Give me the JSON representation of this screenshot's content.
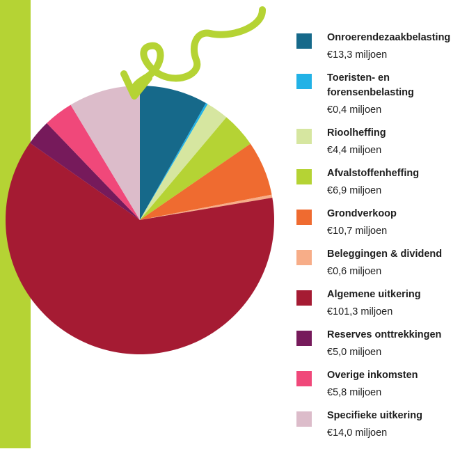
{
  "chart_data": {
    "type": "pie",
    "start": "top",
    "direction": "clockwise",
    "unit_suffix": " miljoen",
    "slices": [
      {
        "label": "Onroerendezaakbelasting",
        "value_text": "€13,3 miljoen",
        "value": 13.3,
        "color": "#16698a"
      },
      {
        "label": "Toeristen- en forensenbelasting",
        "value_text": "€0,4 miljoen",
        "value": 0.4,
        "color": "#22b2e6"
      },
      {
        "label": "Rioolheffing",
        "value_text": "€4,4 miljoen",
        "value": 4.4,
        "color": "#d6e6a0"
      },
      {
        "label": "Afvalstoffenheffing",
        "value_text": "€6,9 miljoen",
        "value": 6.9,
        "color": "#b5d334"
      },
      {
        "label": "Grondverkoop",
        "value_text": "€10,7 miljoen",
        "value": 10.7,
        "color": "#ef6b30"
      },
      {
        "label": "Beleggingen & dividend",
        "value_text": "€0,6 miljoen",
        "value": 0.6,
        "color": "#f7ad88"
      },
      {
        "label": "Algemene uitkering",
        "value_text": "€101,3 miljoen",
        "value": 101.3,
        "color": "#a51b33"
      },
      {
        "label": "Reserves onttrekkingen",
        "value_text": "€5,0 miljoen",
        "value": 5.0,
        "color": "#761a5b"
      },
      {
        "label": "Overige inkomsten",
        "value_text": "€5,8 miljoen",
        "value": 5.8,
        "color": "#f0487a"
      },
      {
        "label": "Specifieke uitkering",
        "value_text": "€14,0 miljoen",
        "value": 14.0,
        "color": "#dcbcca"
      }
    ]
  },
  "decor": {
    "accent_bar_color": "#b5d334",
    "arrow_color": "#b5d334",
    "arrow_icon": "squiggly-arrow-icon"
  }
}
